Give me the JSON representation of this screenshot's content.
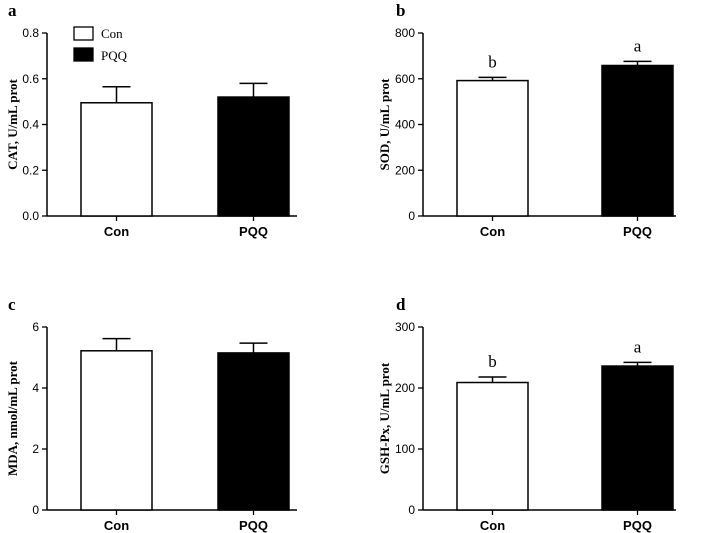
{
  "chart_data": [
    {
      "type": "bar",
      "panel": "a",
      "categories": [
        "Con",
        "PQQ"
      ],
      "values": [
        0.495,
        0.52
      ],
      "errors": [
        0.07,
        0.06
      ],
      "ylabel": "CAT, U/mL prot",
      "ylim": [
        0,
        0.8
      ],
      "yticks": [
        "0.0",
        "0.2",
        "0.4",
        "0.6",
        "0.8"
      ],
      "significance": [
        "",
        ""
      ],
      "colors": [
        "#ffffff",
        "#000000"
      ]
    },
    {
      "type": "bar",
      "panel": "b",
      "categories": [
        "Con",
        "PQQ"
      ],
      "values": [
        592,
        658
      ],
      "errors": [
        14,
        18
      ],
      "ylabel": "SOD, U/mL prot",
      "ylim": [
        0,
        800
      ],
      "yticks": [
        "0",
        "200",
        "400",
        "600",
        "800"
      ],
      "significance": [
        "b",
        "a"
      ],
      "colors": [
        "#ffffff",
        "#000000"
      ]
    },
    {
      "type": "bar",
      "panel": "c",
      "categories": [
        "Con",
        "PQQ"
      ],
      "values": [
        5.22,
        5.15
      ],
      "errors": [
        0.4,
        0.32
      ],
      "ylabel": "MDA, nmol/mL prot",
      "ylim": [
        0,
        6
      ],
      "yticks": [
        "0",
        "2",
        "4",
        "6"
      ],
      "significance": [
        "",
        ""
      ],
      "colors": [
        "#ffffff",
        "#000000"
      ]
    },
    {
      "type": "bar",
      "panel": "d",
      "categories": [
        "Con",
        "PQQ"
      ],
      "values": [
        209,
        236
      ],
      "errors": [
        9,
        6
      ],
      "ylabel": "GSH-Px, U/mL prot",
      "ylim": [
        0,
        300
      ],
      "yticks": [
        "0",
        "100",
        "200",
        "300"
      ],
      "significance": [
        "b",
        "a"
      ],
      "colors": [
        "#ffffff",
        "#000000"
      ]
    }
  ],
  "legend": {
    "items": [
      {
        "label": "Con",
        "color": "#ffffff"
      },
      {
        "label": "PQQ",
        "color": "#000000"
      }
    ]
  }
}
